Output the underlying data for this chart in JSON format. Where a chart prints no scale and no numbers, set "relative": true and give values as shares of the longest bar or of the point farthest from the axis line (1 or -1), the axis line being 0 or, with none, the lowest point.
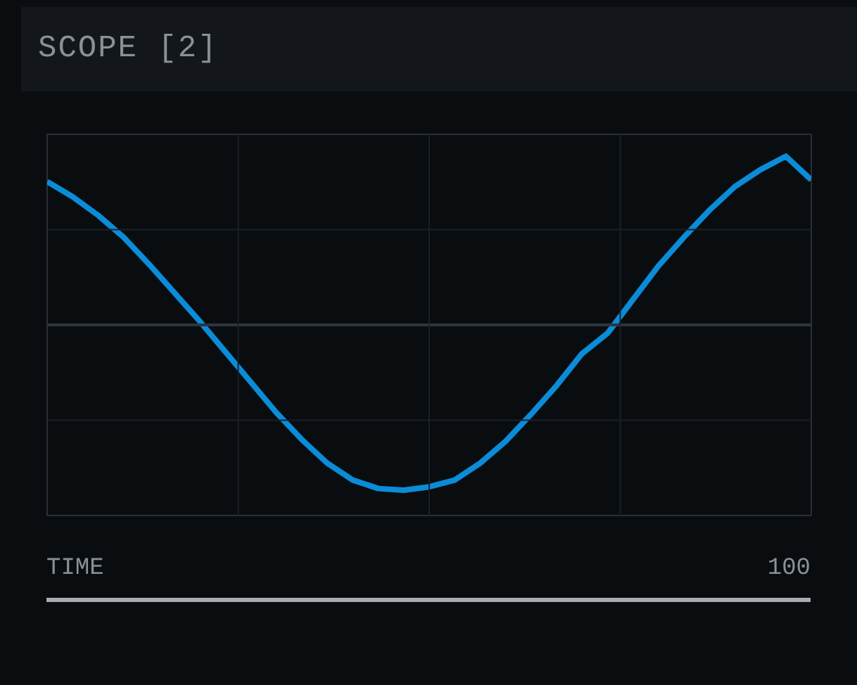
{
  "chart_data": {
    "type": "line",
    "title": "SCOPE [2]",
    "xlabel": "TIME",
    "annotations": [
      "100"
    ],
    "relative": true,
    "grid": true,
    "categories": [
      null,
      null,
      null,
      null,
      null,
      null,
      null,
      null,
      null,
      null,
      null,
      null,
      null,
      null,
      null,
      null,
      null,
      null,
      null,
      null,
      null,
      null,
      null,
      null,
      null,
      null,
      null,
      null,
      null,
      null,
      null
    ],
    "series": [
      {
        "color": "#0a8cd8",
        "values": [
          0.85,
          0.76,
          0.65,
          0.52,
          0.36,
          0.19,
          0.02,
          -0.16,
          -0.34,
          -0.52,
          -0.68,
          -0.82,
          -0.92,
          -0.97,
          -0.98,
          -0.96,
          -0.92,
          -0.82,
          -0.69,
          -0.53,
          -0.36,
          -0.17,
          -0.05,
          0.15,
          0.35,
          0.52,
          0.68,
          0.82,
          0.92,
          1.0,
          0.86
        ]
      }
    ]
  }
}
